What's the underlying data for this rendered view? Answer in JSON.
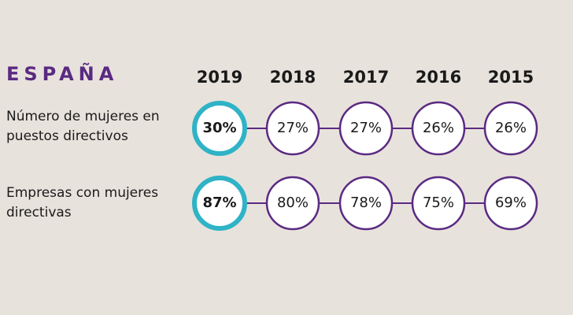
{
  "chart_data": {
    "type": "table",
    "title": "ESPAÑA",
    "categories": [
      "2019",
      "2018",
      "2017",
      "2016",
      "2015"
    ],
    "series": [
      {
        "name": "Número de mujeres en puestos directivos",
        "values": [
          30,
          27,
          27,
          26,
          26
        ],
        "labels": [
          "30%",
          "27%",
          "27%",
          "26%",
          "26%"
        ]
      },
      {
        "name": "Empresas con mujeres directivas",
        "values": [
          87,
          80,
          78,
          75,
          69
        ],
        "labels": [
          "87%",
          "80%",
          "78%",
          "75%",
          "69%"
        ]
      }
    ],
    "highlight_category": "2019"
  },
  "colors": {
    "background": "#e8e2dc",
    "purple": "#5a2a82",
    "teal": "#2fb3c6",
    "circle_fill": "#ffffff"
  }
}
